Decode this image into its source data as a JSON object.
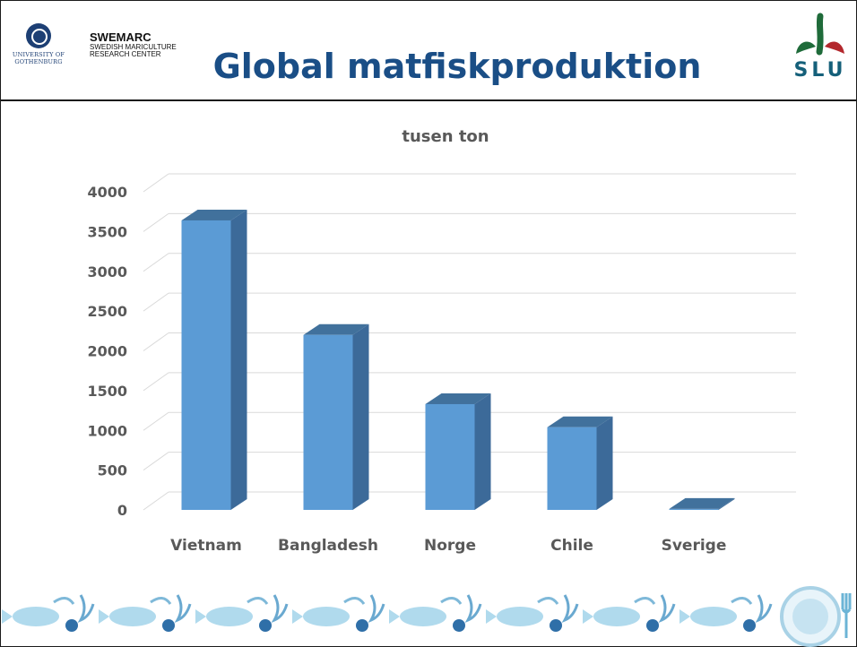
{
  "header": {
    "university": "UNIVERSITY OF GOTHENBURG",
    "university_line1": "UNIVERSITY OF",
    "university_line2": "GOTHENBURG",
    "center_name": "SWEMARC",
    "center_line1": "SWEDISH MARICULTURE",
    "center_line2": "RESEARCH CENTER",
    "title": "Global matfiskproduktion",
    "slu_logo_text": "SLU"
  },
  "colors": {
    "title": "#1a4e86",
    "bar_front": "#5b9bd5",
    "bar_side": "#3c6a99",
    "bar_top": "#41719c",
    "axis_text": "#595959"
  },
  "chart_data": {
    "type": "bar",
    "title": "tusen ton",
    "xlabel": "",
    "ylabel": "",
    "categories": [
      "Vietnam",
      "Bangladesh",
      "Norge",
      "Chile",
      "Sverige"
    ],
    "values": [
      3640,
      2200,
      1330,
      1040,
      12
    ],
    "ylim": [
      0,
      4000
    ],
    "yticks": [
      0,
      500,
      1000,
      1500,
      2000,
      2500,
      3000,
      3500,
      4000
    ],
    "grid": true,
    "three_d": true
  }
}
